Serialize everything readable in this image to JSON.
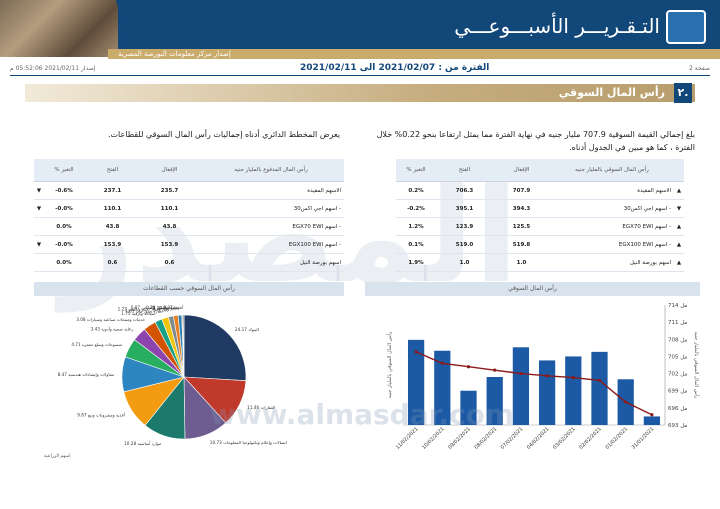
{
  "header": {
    "title": "التـقـريـــر الأسبـــوعـــي",
    "subtitle": "إصدار مركز معلومات البورصة المصرية"
  },
  "meta": {
    "page": "صفحة 2",
    "period": "الفترة من : 2021/02/07 الى 2021/02/11",
    "issued": "إصدار 2021/02/11 05:52:06 م"
  },
  "section": {
    "number": "٢.",
    "title": "رأس المال السوقي"
  },
  "paragraphs": {
    "right": "بلغ إجمالي القيمة السوقية 707.9 مليار جنيه في نهاية الفترة مما يمثل ارتفاعا بنحو 0.22% خلال الفترة ، كما هو مبين في الجدول أدناه.",
    "left": "يعرض المخطط الدائري أدناه إجماليات رأس المال السوقي للقطاعات."
  },
  "table_right": {
    "headers": [
      "رأس المال السوقي بالمليار جنيه",
      "الإقفال",
      "الفتح",
      "% التغير"
    ],
    "rows": [
      {
        "name": "الاسهم المقيدة",
        "close": "707.9",
        "open": "706.3",
        "change": "0.2%",
        "dir": "up"
      },
      {
        "name": "- اسهم اجي اكس30",
        "close": "394.3",
        "open": "395.1",
        "change": "-0.2%",
        "dir": "down"
      },
      {
        "name": "- اسهم EGX70 EWI",
        "close": "125.5",
        "open": "123.9",
        "change": "1.2%",
        "dir": "up"
      },
      {
        "name": "- اسهم EGX100 EWI",
        "close": "519.8",
        "open": "519.0",
        "change": "0.1%",
        "dir": "up"
      },
      {
        "name": "اسهم بورصة النيل",
        "close": "1.0",
        "open": "1.0",
        "change": "1.9%",
        "dir": "up"
      }
    ]
  },
  "table_left": {
    "headers": [
      "رأس المال المدفوع بالمليار جنيه",
      "الإقفال",
      "الفتح",
      "% التغير"
    ],
    "rows": [
      {
        "name": "الاسهم المقيدة",
        "close": "235.7",
        "open": "237.1",
        "change": "-0.6%",
        "dir": "down"
      },
      {
        "name": "- اسهم اجي اكس30",
        "close": "110.1",
        "open": "110.1",
        "change": "-0.0%",
        "dir": "down"
      },
      {
        "name": "- اسهم EGX70 EWI",
        "close": "43.8",
        "open": "43.8",
        "change": "0.0%",
        "dir": "none"
      },
      {
        "name": "- اسهم EGX100 EWI",
        "close": "153.9",
        "open": "153.9",
        "change": "-0.0%",
        "dir": "down"
      },
      {
        "name": "اسهم بورصة النيل",
        "close": "0.6",
        "open": "0.6",
        "change": "0.0%",
        "dir": "none"
      }
    ]
  },
  "watermark": {
    "big": "المصدر",
    "url": "www.almasdar.com"
  },
  "colors": {
    "navy": "#12477a",
    "gold": "#c9ab6b",
    "bar": "#1c5aa6",
    "line": "#8b1a1a",
    "down": "#b21f24"
  },
  "chart_data": [
    {
      "type": "bar",
      "title": "رأس المال السوقي",
      "categories": [
        "31/01/2021",
        "01/02/2021",
        "02/02/2021",
        "03/02/2021",
        "04/02/2021",
        "07/02/2021",
        "08/02/2021",
        "09/02/2021",
        "10/02/2021",
        "11/02/2021"
      ],
      "values": [
        694.5,
        701.0,
        705.8,
        705.0,
        704.3,
        706.6,
        701.4,
        699.0,
        706.0,
        707.9
      ],
      "line_values": [
        694.8,
        697.0,
        700.8,
        701.3,
        701.6,
        702.0,
        702.6,
        703.2,
        703.8,
        705.8
      ],
      "ylim": [
        693,
        714
      ],
      "y_ticks": [
        "693 مل",
        "696 مل",
        "699 مل",
        "702 مل",
        "705 مل",
        "708 مل",
        "711 مل",
        "714 مل"
      ],
      "ylabel_right": "رأس المال السوقي بالمليار جنيه",
      "ylabel_left": "رأس المال السوقي بالمليار جنيه",
      "grid": false
    },
    {
      "type": "pie",
      "title": "رأس المال السوقي حسب القطاعات",
      "labels": [
        "البنوك",
        "العقارات",
        "اتصالات وإعلام وتكنولوجيا المعلومات",
        "موارد أساسية",
        "أغذية ومشروبات وتبغ",
        "مقاولات وإنشاءات هندسية",
        "منسوجات وسلع معمرة",
        "رعاية صحية وأدوية",
        "خدمات ومنتجات صناعية وسيارات",
        "سياحة وترفيه",
        "تجارة وموزعون",
        "ورق ومواد تعبئة وتغليف",
        "مرافق",
        "خدمات النقل والشحن",
        "خدمات تعليمية",
        "أخرى"
      ],
      "values": [
        24.17,
        11.46,
        10.73,
        10.28,
        9.67,
        8.47,
        4.71,
        3.43,
        3.08,
        1.75,
        1.65,
        1.23,
        1.13,
        0.87,
        0.28,
        0.27
      ],
      "data_labels": [
        "24.17",
        "11.46",
        "10.73",
        "10.28",
        "9.67",
        "8.47",
        "4.71",
        "3.43",
        "3.08",
        "1.75",
        "1.65",
        "1.23",
        "1.13",
        "0.87",
        "0.28",
        "0.27"
      ],
      "colors": [
        "#1f3b63",
        "#c0392b",
        "#6d5c8f",
        "#1b7a6b",
        "#f39c12",
        "#2e86c1",
        "#27ae60",
        "#8e44ad",
        "#d35400",
        "#16a085",
        "#f1c40f",
        "#7f8c8d",
        "#e67e22",
        "#2980b9",
        "#c0a060",
        "#5d6d7e"
      ],
      "legend": "none",
      "footer": "اسهم الزراعية"
    }
  ]
}
